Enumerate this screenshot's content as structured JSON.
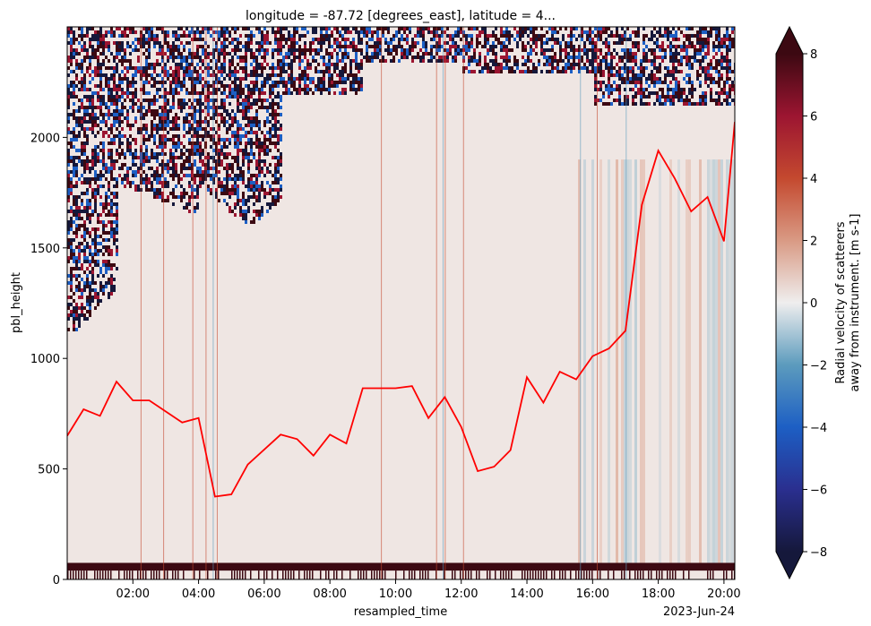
{
  "chart_data": {
    "type": "heatmap",
    "title": "longitude = -87.72 [degrees_east], latitude = 4...",
    "xlabel": "resampled_time",
    "ylabel": "pbl_height",
    "x_offset_label": "2023-Jun-24",
    "x_ticks": [
      "02:00",
      "04:00",
      "06:00",
      "08:00",
      "10:00",
      "12:00",
      "14:00",
      "16:00",
      "18:00",
      "20:00"
    ],
    "x_range_hours": [
      0.0,
      20.33
    ],
    "y_ticks": [
      0,
      500,
      1000,
      1500,
      2000
    ],
    "ylim": [
      0,
      2500
    ],
    "colorbar": {
      "label_line1": "Radial velocity of scatterers",
      "label_line2": "away from instrument. [m s-1]",
      "ticks": [
        8,
        6,
        4,
        2,
        0,
        -2,
        -4,
        -6,
        -8
      ],
      "vmin": -8,
      "vmax": 8,
      "extend": "both",
      "colormap": "balance (navy-blue-white-red-maroon)"
    },
    "series": [
      {
        "type": "line",
        "color": "#ff0000",
        "x_hours": [
          0.0,
          0.5,
          1.0,
          1.5,
          2.0,
          2.5,
          3.5,
          4.0,
          4.5,
          5.0,
          5.5,
          6.5,
          7.0,
          7.5,
          8.0,
          8.5,
          9.0,
          10.0,
          10.5,
          11.0,
          11.5,
          12.0,
          12.5,
          13.0,
          13.5,
          14.0,
          14.5,
          15.0,
          15.5,
          16.0,
          16.5,
          17.0,
          17.5,
          18.0,
          18.5,
          19.0,
          19.5,
          20.0,
          20.33
        ],
        "y": [
          650,
          770,
          740,
          895,
          810,
          810,
          710,
          730,
          375,
          385,
          520,
          655,
          635,
          560,
          655,
          615,
          865,
          865,
          875,
          730,
          825,
          690,
          490,
          510,
          585,
          915,
          800,
          940,
          905,
          1010,
          1045,
          1125,
          1695,
          1940,
          1815,
          1665,
          1730,
          1530,
          2070
        ]
      }
    ]
  }
}
